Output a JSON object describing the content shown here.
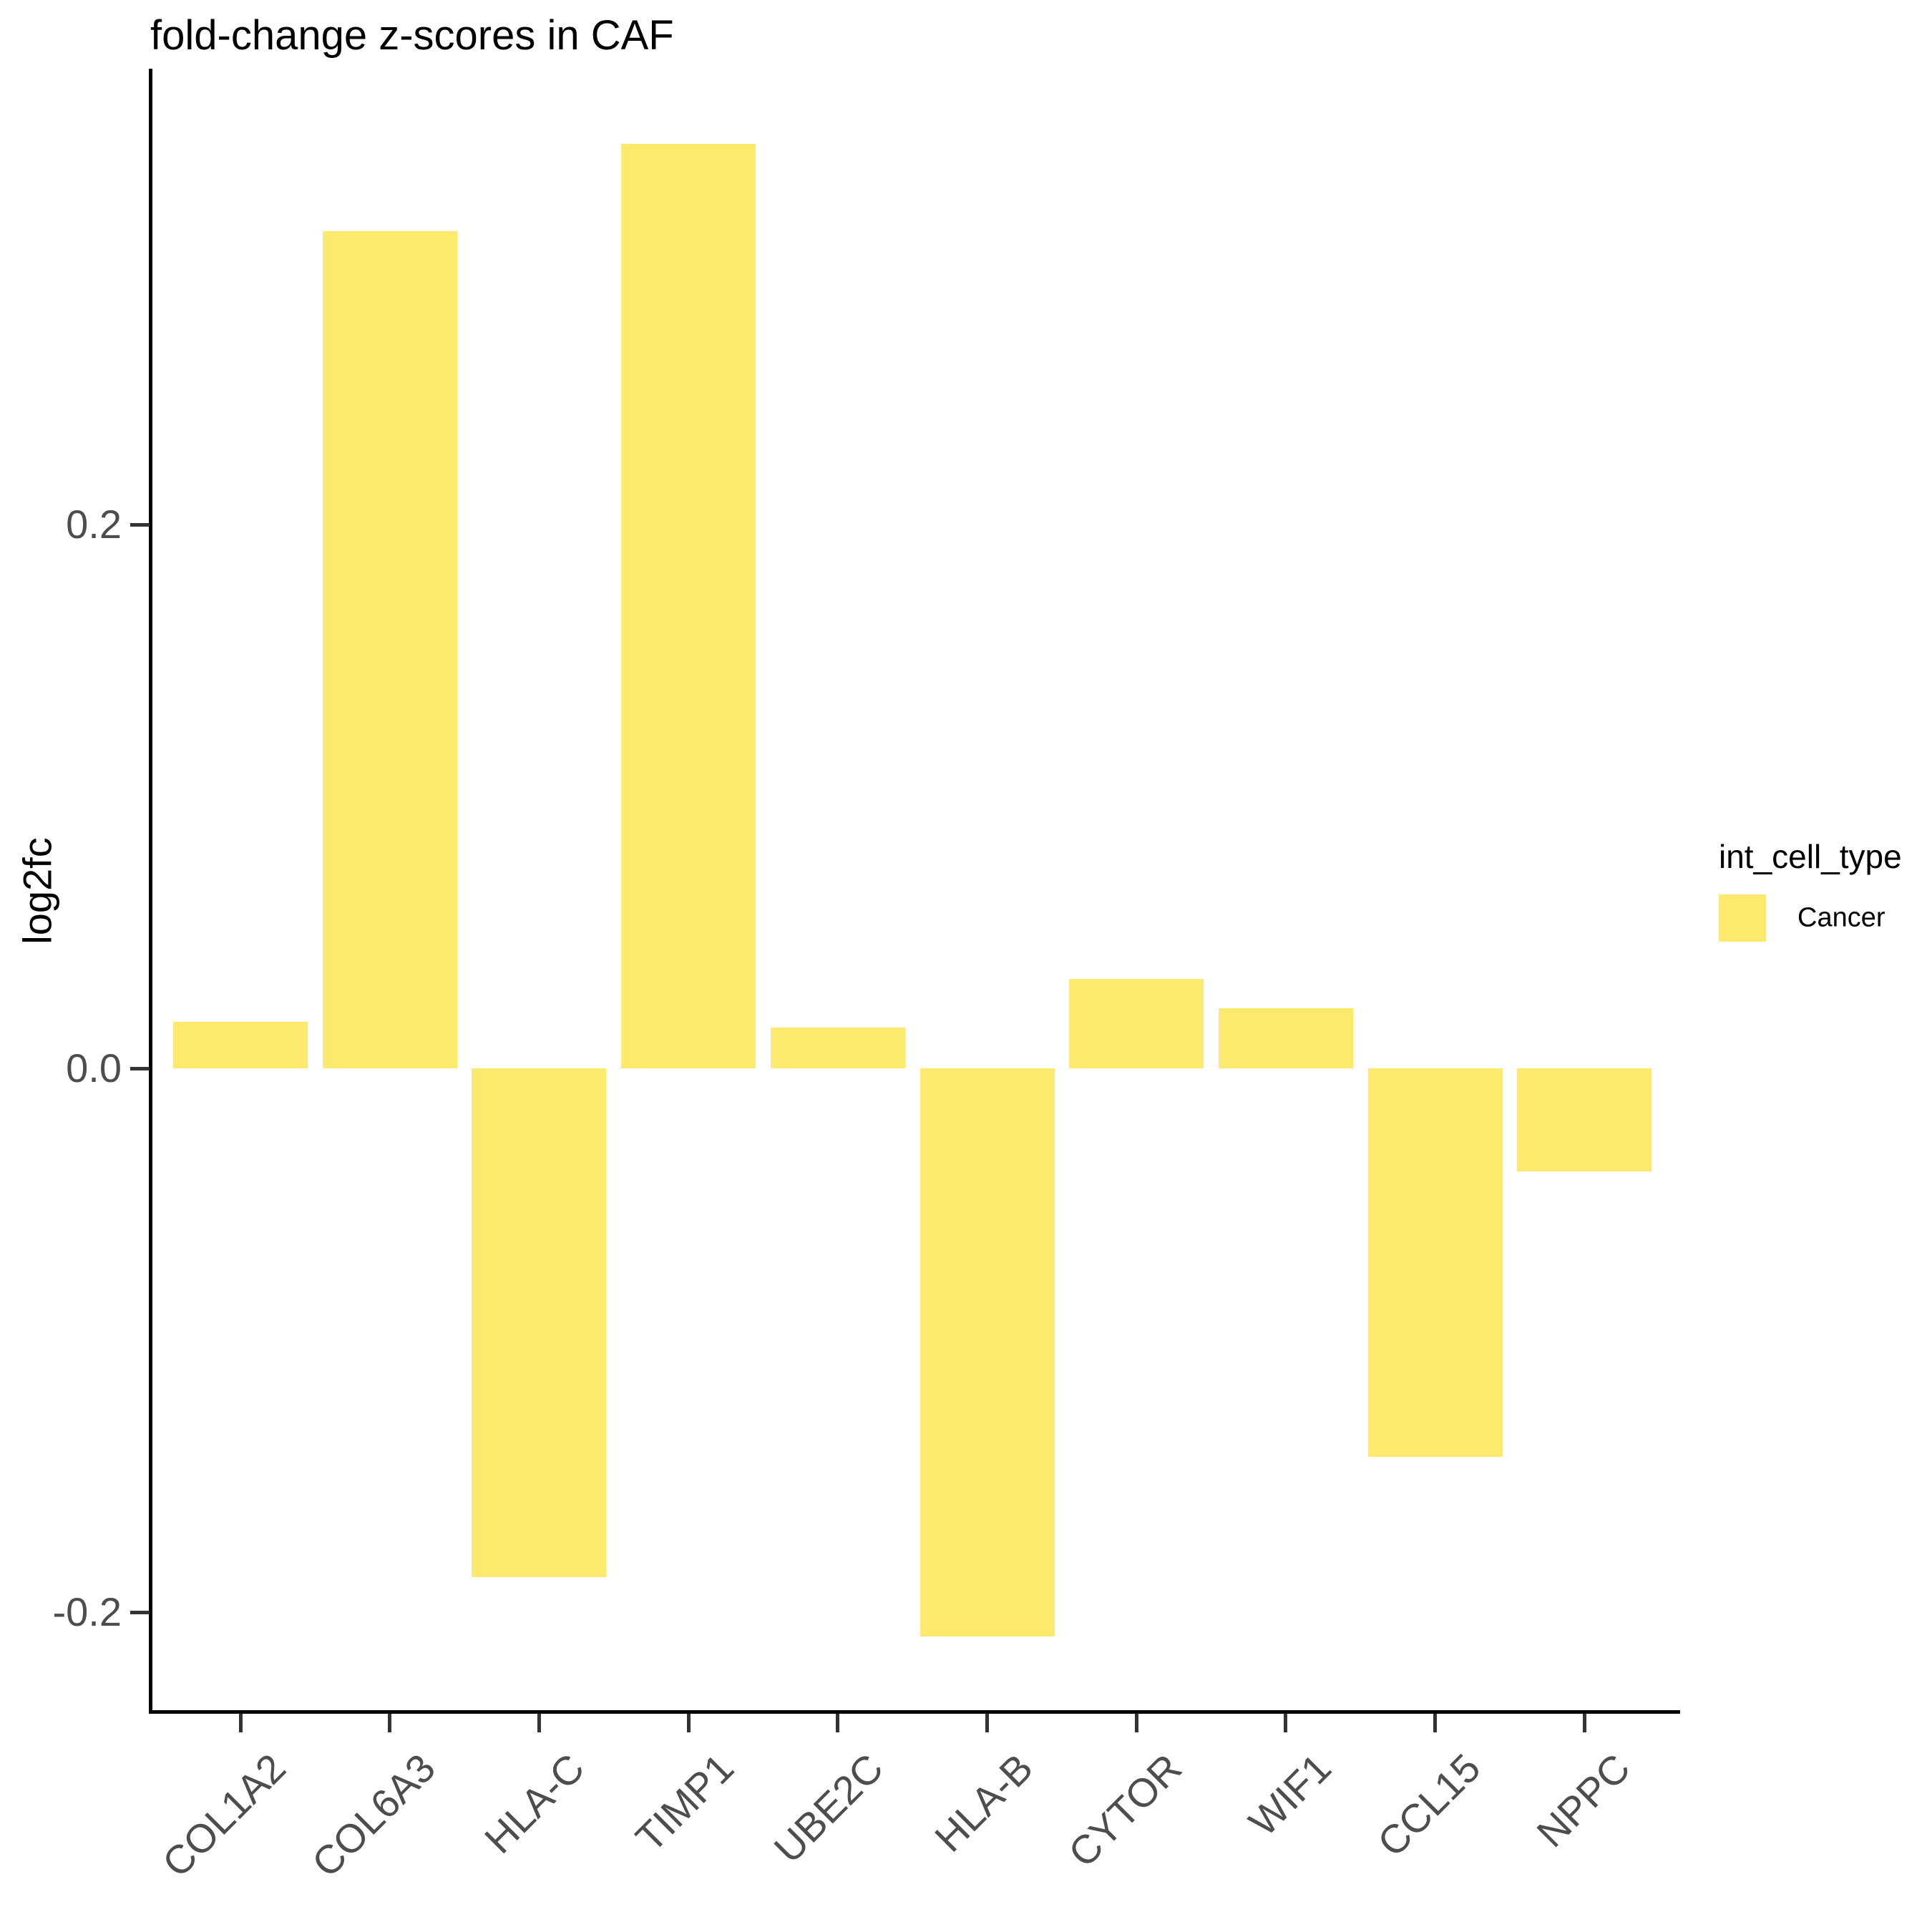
{
  "title": "fold-change z-scores in CAF",
  "y_axis": {
    "label": "log2fc",
    "ticks": [
      {
        "label": "0.2",
        "value": 0.2
      },
      {
        "label": "0.0",
        "value": 0.0
      },
      {
        "label": "-0.2",
        "value": -0.2
      }
    ]
  },
  "legend": {
    "title": "int_cell_type",
    "items": [
      {
        "label": "Cancer",
        "color": "#FDE96E"
      }
    ]
  },
  "chart_data": {
    "type": "bar",
    "title": "fold-change z-scores in CAF",
    "xlabel": "",
    "ylabel": "log2fc",
    "categories": [
      "COL1A2",
      "COL6A3",
      "HLA-C",
      "TIMP1",
      "UBE2C",
      "HLA-B",
      "CYTOR",
      "WIF1",
      "CCL15",
      "NPPC"
    ],
    "values": [
      0.017,
      0.308,
      -0.187,
      0.34,
      0.015,
      -0.209,
      0.033,
      0.022,
      -0.143,
      -0.038
    ],
    "series_name": "Cancer",
    "bar_color": "#FDE96E",
    "ylim": [
      -0.237,
      0.367
    ],
    "ytick_values": [
      0.2,
      0.0,
      -0.2
    ],
    "grid": "off",
    "legend_position": "right",
    "x_label_angle": 45
  }
}
